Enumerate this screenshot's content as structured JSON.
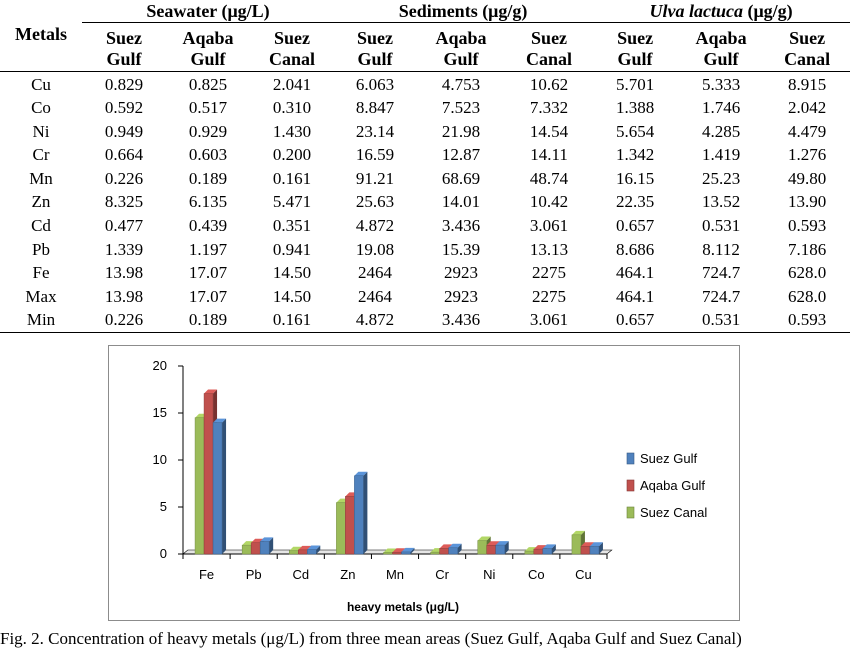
{
  "table": {
    "groups": [
      {
        "label": "Seawater (μg/L)",
        "italic_part": "",
        "rest_part": ""
      },
      {
        "label": "Sediments (μg/g)",
        "italic_part": "",
        "rest_part": ""
      },
      {
        "label": "",
        "italic_part": "Ulva lactuca",
        "rest_part": " (μg/g)"
      }
    ],
    "metal_header": "Metals",
    "columns": [
      {
        "line1": "Suez",
        "line2": "Gulf"
      },
      {
        "line1": "Aqaba",
        "line2": "Gulf"
      },
      {
        "line1": "Suez",
        "line2": "Canal"
      },
      {
        "line1": "Suez",
        "line2": "Gulf"
      },
      {
        "line1": "Aqaba",
        "line2": "Gulf"
      },
      {
        "line1": "Suez",
        "line2": "Canal"
      },
      {
        "line1": "Suez",
        "line2": "Gulf"
      },
      {
        "line1": "Aqaba",
        "line2": "Gulf"
      },
      {
        "line1": "Suez",
        "line2": "Canal"
      }
    ],
    "rows": [
      {
        "metal": "Cu",
        "values": [
          "0.829",
          "0.825",
          "2.041",
          "6.063",
          "4.753",
          "10.62",
          "5.701",
          "5.333",
          "8.915"
        ]
      },
      {
        "metal": "Co",
        "values": [
          "0.592",
          "0.517",
          "0.310",
          "8.847",
          "7.523",
          "7.332",
          "1.388",
          "1.746",
          "2.042"
        ]
      },
      {
        "metal": "Ni",
        "values": [
          "0.949",
          "0.929",
          "1.430",
          "23.14",
          "21.98",
          "14.54",
          "5.654",
          "4.285",
          "4.479"
        ]
      },
      {
        "metal": "Cr",
        "values": [
          "0.664",
          "0.603",
          "0.200",
          "16.59",
          "12.87",
          "14.11",
          "1.342",
          "1.419",
          "1.276"
        ]
      },
      {
        "metal": "Mn",
        "values": [
          "0.226",
          "0.189",
          "0.161",
          "91.21",
          "68.69",
          "48.74",
          "16.15",
          "25.23",
          "49.80"
        ]
      },
      {
        "metal": "Zn",
        "values": [
          "8.325",
          "6.135",
          "5.471",
          "25.63",
          "14.01",
          "10.42",
          "22.35",
          "13.52",
          "13.90"
        ]
      },
      {
        "metal": "Cd",
        "values": [
          "0.477",
          "0.439",
          "0.351",
          "4.872",
          "3.436",
          "3.061",
          "0.657",
          "0.531",
          "0.593"
        ]
      },
      {
        "metal": "Pb",
        "values": [
          "1.339",
          "1.197",
          "0.941",
          "19.08",
          "15.39",
          "13.13",
          "8.686",
          "8.112",
          "7.186"
        ]
      },
      {
        "metal": "Fe",
        "values": [
          "13.98",
          "17.07",
          "14.50",
          "2464",
          "2923",
          "2275",
          "464.1",
          "724.7",
          "628.0"
        ]
      },
      {
        "metal": "Max",
        "values": [
          "13.98",
          "17.07",
          "14.50",
          "2464",
          "2923",
          "2275",
          "464.1",
          "724.7",
          "628.0"
        ]
      },
      {
        "metal": "Min",
        "values": [
          "0.226",
          "0.189",
          "0.161",
          "4.872",
          "3.436",
          "3.061",
          "0.657",
          "0.531",
          "0.593"
        ]
      }
    ]
  },
  "chart_data": {
    "type": "bar",
    "style": "3d-clustered",
    "categories": [
      "Fe",
      "Pb",
      "Cd",
      "Zn",
      "Mn",
      "Cr",
      "Ni",
      "Co",
      "Cu"
    ],
    "series": [
      {
        "name": "Suez Canal",
        "color": "#9bbb59",
        "values": [
          14.5,
          0.941,
          0.351,
          5.471,
          0.161,
          0.2,
          1.43,
          0.31,
          2.041
        ]
      },
      {
        "name": "Aqaba Gulf",
        "color": "#c0504d",
        "values": [
          17.07,
          1.197,
          0.439,
          6.135,
          0.189,
          0.603,
          0.929,
          0.517,
          0.825
        ]
      },
      {
        "name": "Suez Gulf",
        "color": "#4f81bd",
        "values": [
          13.98,
          1.339,
          0.477,
          8.325,
          0.226,
          0.664,
          0.949,
          0.592,
          0.829
        ]
      }
    ],
    "legend_order": [
      "Suez Gulf",
      "Aqaba Gulf",
      "Suez Canal"
    ],
    "legend_position": "right",
    "xlabel": "heavy metals (μg/L)",
    "ylabel": "",
    "title": "",
    "ylim": [
      0,
      20
    ],
    "yticks": [
      0,
      5,
      10,
      15,
      20
    ],
    "grid": false
  },
  "caption": "Fig. 2. Concentration of heavy metals (μg/L) from three mean areas (Suez Gulf, Aqaba Gulf and Suez Canal)"
}
